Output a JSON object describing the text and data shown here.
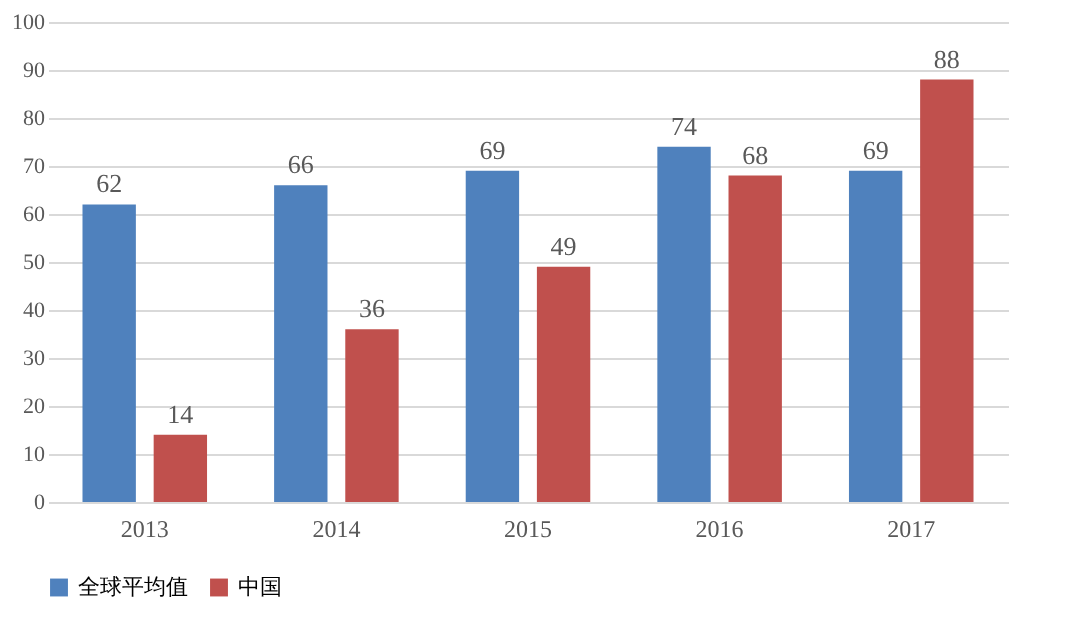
{
  "chart_data": {
    "type": "bar",
    "categories": [
      "2013",
      "2014",
      "2015",
      "2016",
      "2017"
    ],
    "series": [
      {
        "name": "全球平均值",
        "color": "#4f81bd",
        "values": [
          62,
          66,
          69,
          74,
          69
        ]
      },
      {
        "name": "中国",
        "color": "#c0504d",
        "values": [
          14,
          36,
          49,
          68,
          88
        ]
      }
    ],
    "ylim": [
      0,
      100
    ],
    "yticks": [
      0,
      10,
      20,
      30,
      40,
      50,
      60,
      70,
      80,
      90,
      100
    ],
    "grid": "y",
    "legend": "bottom",
    "data_labels": true
  }
}
